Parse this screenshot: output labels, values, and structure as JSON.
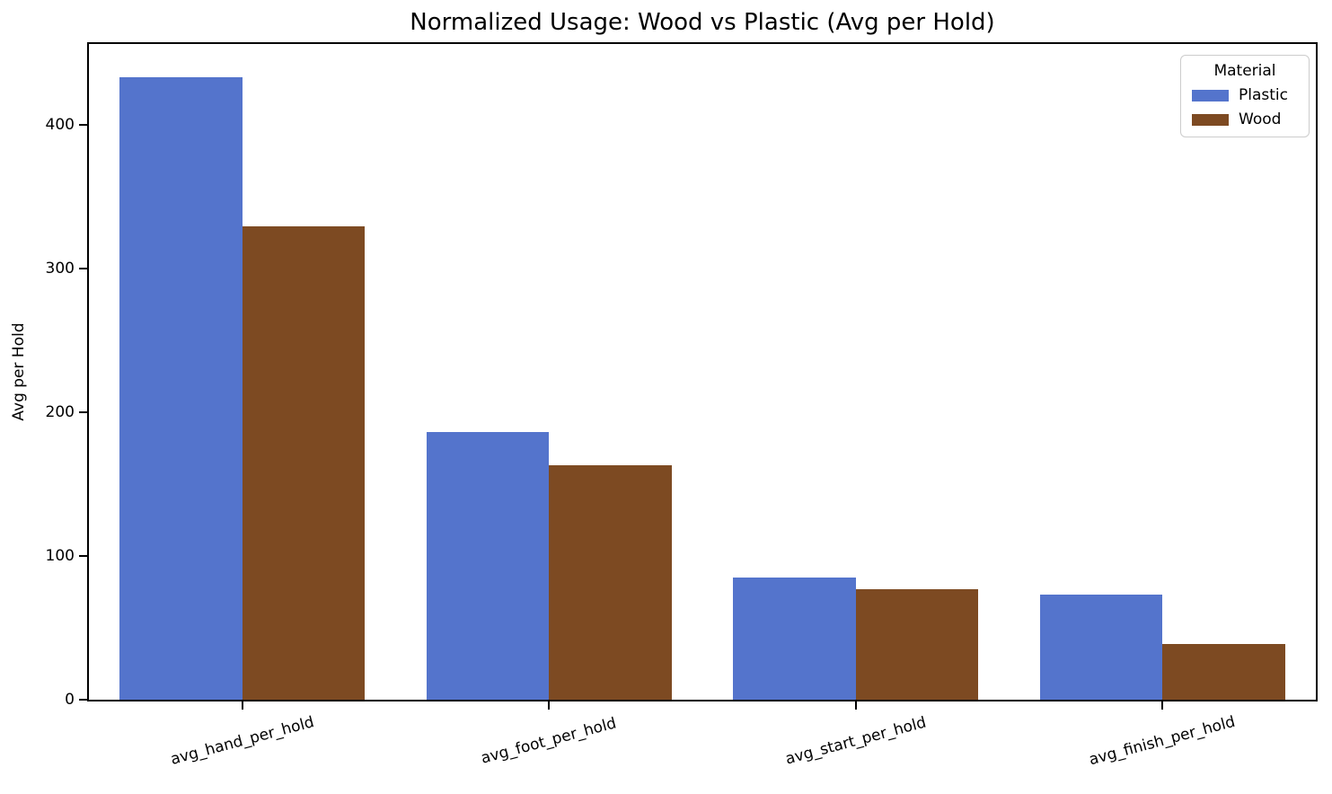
{
  "chart_data": {
    "type": "bar",
    "title": "Normalized Usage: Wood vs Plastic (Avg per Hold)",
    "ylabel": "Avg per Hold",
    "xlabel": "",
    "categories": [
      "avg_hand_per_hold",
      "avg_foot_per_hold",
      "avg_start_per_hold",
      "avg_finish_per_hold"
    ],
    "series": [
      {
        "name": "Plastic",
        "color": "#5474cc",
        "values": [
          433,
          186,
          85,
          73
        ]
      },
      {
        "name": "Wood",
        "color": "#7d4a22",
        "values": [
          329,
          163,
          77,
          39
        ]
      }
    ],
    "legend": {
      "title": "Material",
      "entries": [
        "Plastic",
        "Wood"
      ],
      "position": "upper-right"
    },
    "ylim": [
      0,
      456
    ],
    "yticks": [
      0,
      100,
      200,
      300,
      400
    ],
    "grid": false,
    "bar_group_fraction": 0.8,
    "x_tick_rotation_deg": 15,
    "colors": {
      "spine": "#000000",
      "background": "#ffffff",
      "legend_border": "#cccccc"
    }
  }
}
